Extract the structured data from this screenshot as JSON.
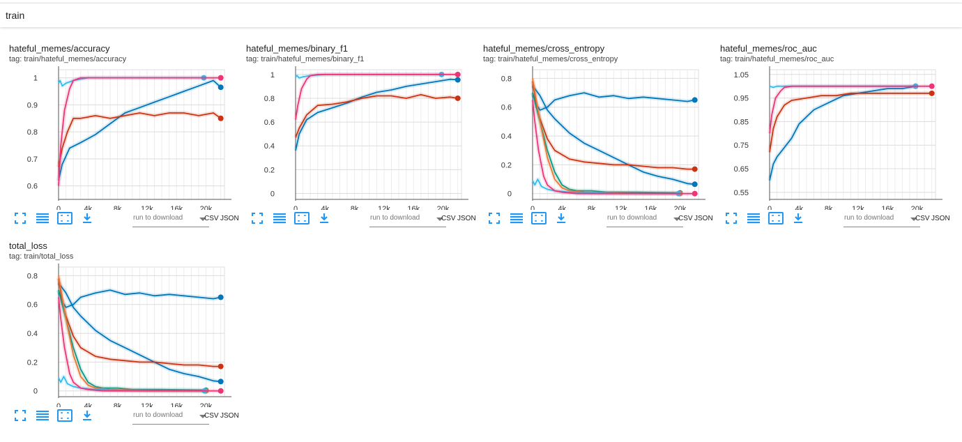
{
  "section": {
    "title": "train"
  },
  "toolbar": {
    "run_placeholder": "run to download",
    "csv_label": "CSV",
    "json_label": "JSON"
  },
  "icons": [
    "fullscreen-icon",
    "log-scale-icon",
    "fit-domain-icon",
    "download-icon"
  ],
  "colors": {
    "accent": "#2196f3",
    "dark_blue": "#0077bb",
    "light_blue": "#33bbee",
    "red": "#cc3311",
    "magenta": "#ee3377",
    "teal": "#009988",
    "orange": "#ee7733"
  },
  "chart_data": [
    {
      "type": "line",
      "title": "hateful_memes/accuracy",
      "tag": "tag: train/hateful_memes/accuracy",
      "xlim": [
        0,
        22500
      ],
      "ylim": [
        0.55,
        1.03
      ],
      "xticks": [
        0,
        4000,
        8000,
        12000,
        16000,
        20000
      ],
      "xtick_labels": [
        "0",
        "4k",
        "8k",
        "12k",
        "16k",
        "20k"
      ],
      "yticks": [
        0.6,
        0.7,
        0.8,
        0.9,
        1
      ],
      "ytick_labels": [
        "0.6",
        "0.7",
        "0.8",
        "0.9",
        "1"
      ],
      "grid": true,
      "series": [
        {
          "color": "#0077bb",
          "x": [
            0,
            500,
            1500,
            3000,
            5000,
            7000,
            9000,
            11000,
            13000,
            15000,
            17000,
            19000,
            21000,
            22000
          ],
          "y": [
            0.62,
            0.68,
            0.74,
            0.76,
            0.79,
            0.83,
            0.87,
            0.89,
            0.91,
            0.93,
            0.95,
            0.97,
            0.99,
            0.965
          ]
        },
        {
          "color": "#cc3311",
          "x": [
            0,
            500,
            1200,
            2000,
            3000,
            5000,
            7000,
            9000,
            11000,
            13000,
            15000,
            17000,
            19000,
            21000,
            22000
          ],
          "y": [
            0.67,
            0.74,
            0.8,
            0.85,
            0.85,
            0.86,
            0.85,
            0.86,
            0.87,
            0.86,
            0.87,
            0.87,
            0.86,
            0.87,
            0.85
          ]
        },
        {
          "color": "#33bbee",
          "x": [
            0,
            200,
            500,
            1000,
            2000,
            4000,
            8000,
            12000,
            16000,
            19700
          ],
          "y": [
            0.98,
            0.99,
            0.97,
            0.98,
            0.99,
            1.0,
            1.0,
            1.0,
            1.0,
            1.0
          ]
        },
        {
          "color": "#ee3377",
          "x": [
            0,
            300,
            800,
            1500,
            2000,
            3000,
            6000,
            12000,
            18000,
            22000
          ],
          "y": [
            0.6,
            0.75,
            0.88,
            0.96,
            0.99,
            1.0,
            1.0,
            1.0,
            1.0,
            1.0
          ]
        }
      ]
    },
    {
      "type": "line",
      "title": "hateful_memes/binary_f1",
      "tag": "tag: train/hateful_memes/binary_f1",
      "xlim": [
        0,
        22500
      ],
      "ylim": [
        -0.05,
        1.04
      ],
      "xticks": [
        0,
        4000,
        8000,
        12000,
        16000,
        20000
      ],
      "xtick_labels": [
        "0",
        "4k",
        "8k",
        "12k",
        "16k",
        "20k"
      ],
      "yticks": [
        0,
        0.2,
        0.4,
        0.6,
        0.8,
        1
      ],
      "ytick_labels": [
        "0",
        "0.2",
        "0.4",
        "0.6",
        "0.8",
        "1"
      ],
      "grid": true,
      "series": [
        {
          "color": "#0077bb",
          "x": [
            0,
            500,
            1500,
            3000,
            5000,
            7000,
            9000,
            11000,
            13000,
            15000,
            17000,
            19000,
            21000,
            22000
          ],
          "y": [
            0.36,
            0.5,
            0.62,
            0.68,
            0.72,
            0.76,
            0.81,
            0.85,
            0.87,
            0.9,
            0.92,
            0.94,
            0.96,
            0.955
          ]
        },
        {
          "color": "#cc3311",
          "x": [
            0,
            500,
            1500,
            3000,
            5000,
            7000,
            9000,
            11000,
            13000,
            15000,
            17000,
            19000,
            21000,
            22000
          ],
          "y": [
            0.47,
            0.55,
            0.66,
            0.74,
            0.75,
            0.77,
            0.8,
            0.82,
            0.82,
            0.8,
            0.83,
            0.8,
            0.81,
            0.8
          ]
        },
        {
          "color": "#33bbee",
          "x": [
            0,
            200,
            500,
            1000,
            2000,
            4000,
            8000,
            12000,
            16000,
            19800
          ],
          "y": [
            0.98,
            0.99,
            0.97,
            0.98,
            0.99,
            1.0,
            1.0,
            1.0,
            1.0,
            1.0
          ]
        },
        {
          "color": "#ee3377",
          "x": [
            0,
            300,
            800,
            1500,
            2000,
            3000,
            6000,
            12000,
            18000,
            22000
          ],
          "y": [
            0.62,
            0.74,
            0.88,
            0.96,
            0.99,
            1.0,
            1.0,
            1.0,
            1.0,
            1.0
          ]
        }
      ]
    },
    {
      "type": "line",
      "title": "hateful_memes/cross_entropy",
      "tag": "tag: train/hateful_memes/cross_entropy",
      "xlim": [
        0,
        22500
      ],
      "ylim": [
        -0.04,
        0.86
      ],
      "xticks": [
        0,
        4000,
        8000,
        12000,
        16000,
        20000
      ],
      "xtick_labels": [
        "0",
        "4k",
        "8k",
        "12k",
        "16k",
        "20k"
      ],
      "yticks": [
        0,
        0.2,
        0.4,
        0.6,
        0.8
      ],
      "ytick_labels": [
        "0",
        "0.2",
        "0.4",
        "0.6",
        "0.8"
      ],
      "grid": true,
      "series": [
        {
          "color": "#0077bb",
          "x": [
            0,
            500,
            1000,
            2000,
            3000,
            5000,
            7000,
            9000,
            11000,
            13000,
            15000,
            17000,
            19000,
            21000,
            22000
          ],
          "y": [
            0.7,
            0.62,
            0.58,
            0.6,
            0.65,
            0.68,
            0.7,
            0.67,
            0.68,
            0.66,
            0.67,
            0.66,
            0.65,
            0.64,
            0.65
          ]
        },
        {
          "color": "#0077bb",
          "x": [
            0,
            1000,
            2000,
            3000,
            5000,
            7000,
            9000,
            11000,
            13000,
            15000,
            17000,
            19000,
            21000,
            22000
          ],
          "y": [
            0.75,
            0.68,
            0.58,
            0.52,
            0.42,
            0.35,
            0.3,
            0.25,
            0.2,
            0.15,
            0.12,
            0.1,
            0.07,
            0.065
          ]
        },
        {
          "color": "#cc3311",
          "x": [
            0,
            500,
            1000,
            2000,
            3000,
            5000,
            7000,
            9000,
            11000,
            13000,
            15000,
            17000,
            19000,
            21000,
            22000
          ],
          "y": [
            0.78,
            0.62,
            0.52,
            0.38,
            0.3,
            0.24,
            0.22,
            0.21,
            0.2,
            0.2,
            0.19,
            0.18,
            0.18,
            0.17,
            0.17
          ]
        },
        {
          "color": "#009988",
          "x": [
            0,
            500,
            1000,
            2000,
            3000,
            4000,
            5000,
            6000,
            8000,
            10000,
            14000,
            20000
          ],
          "y": [
            0.7,
            0.6,
            0.5,
            0.3,
            0.15,
            0.06,
            0.03,
            0.02,
            0.02,
            0.01,
            0.01,
            0.005
          ]
        },
        {
          "color": "#ee7733",
          "x": [
            0,
            500,
            1000,
            2000,
            3000,
            4000,
            5000,
            7000,
            10000,
            15000,
            20000
          ],
          "y": [
            0.8,
            0.65,
            0.5,
            0.25,
            0.1,
            0.04,
            0.02,
            0.01,
            0.005,
            0.0,
            0.0
          ]
        },
        {
          "color": "#33bbee",
          "x": [
            0,
            300,
            700,
            1200,
            2000,
            3000,
            5000,
            8000,
            12000,
            16000,
            19800
          ],
          "y": [
            0.09,
            0.06,
            0.1,
            0.05,
            0.03,
            0.02,
            0.01,
            0.005,
            0.0,
            0.0,
            0.0
          ]
        },
        {
          "color": "#ee3377",
          "x": [
            0,
            300,
            800,
            1500,
            2000,
            3000,
            4000,
            6000,
            12000,
            18000,
            22000
          ],
          "y": [
            0.65,
            0.5,
            0.3,
            0.12,
            0.06,
            0.02,
            0.01,
            0.0,
            0.0,
            0.0,
            0.0
          ]
        }
      ]
    },
    {
      "type": "line",
      "title": "hateful_memes/roc_auc",
      "tag": "tag: train/hateful_memes/roc_auc",
      "xlim": [
        0,
        22500
      ],
      "ylim": [
        0.52,
        1.07
      ],
      "xticks": [
        0,
        4000,
        8000,
        12000,
        16000,
        20000
      ],
      "xtick_labels": [
        "0",
        "4k",
        "8k",
        "12k",
        "16k",
        "20k"
      ],
      "yticks": [
        0.55,
        0.65,
        0.75,
        0.85,
        0.95,
        1.05
      ],
      "ytick_labels": [
        "0.55",
        "0.65",
        "0.75",
        "0.85",
        "0.95",
        "1.05"
      ],
      "grid": true,
      "series": [
        {
          "color": "#0077bb",
          "x": [
            0,
            500,
            1000,
            2000,
            3000,
            4000,
            6000,
            8000,
            10000,
            12000,
            14000,
            16000,
            18000,
            19800
          ],
          "y": [
            0.6,
            0.67,
            0.7,
            0.74,
            0.78,
            0.84,
            0.9,
            0.93,
            0.96,
            0.97,
            0.98,
            0.99,
            0.99,
            1.0
          ]
        },
        {
          "color": "#cc3311",
          "x": [
            0,
            500,
            1000,
            2000,
            3000,
            5000,
            7000,
            9000,
            11000,
            13000,
            15000,
            17000,
            19000,
            21000,
            22000
          ],
          "y": [
            0.72,
            0.82,
            0.87,
            0.92,
            0.94,
            0.95,
            0.96,
            0.96,
            0.97,
            0.97,
            0.97,
            0.97,
            0.97,
            0.97,
            0.97
          ]
        },
        {
          "color": "#33bbee",
          "x": [
            0,
            500,
            1000,
            2000,
            4000,
            8000,
            12000,
            16000,
            19800
          ],
          "y": [
            1.0,
            0.995,
            1.0,
            1.0,
            1.0,
            1.0,
            1.0,
            1.0,
            1.0
          ]
        },
        {
          "color": "#ee3377",
          "x": [
            0,
            300,
            800,
            1500,
            2000,
            3000,
            6000,
            12000,
            18000,
            22000
          ],
          "y": [
            0.8,
            0.88,
            0.95,
            0.98,
            0.995,
            1.0,
            1.0,
            1.0,
            1.0,
            1.0
          ]
        }
      ]
    },
    {
      "type": "line",
      "title": "total_loss",
      "tag": "tag: train/total_loss",
      "xlim": [
        0,
        22500
      ],
      "ylim": [
        -0.04,
        0.86
      ],
      "xticks": [
        0,
        4000,
        8000,
        12000,
        16000,
        20000
      ],
      "xtick_labels": [
        "0",
        "4k",
        "8k",
        "12k",
        "16k",
        "20k"
      ],
      "yticks": [
        0,
        0.2,
        0.4,
        0.6,
        0.8
      ],
      "ytick_labels": [
        "0",
        "0.2",
        "0.4",
        "0.6",
        "0.8"
      ],
      "grid": true,
      "series": [
        {
          "color": "#0077bb",
          "x": [
            0,
            500,
            1000,
            2000,
            3000,
            5000,
            7000,
            9000,
            11000,
            13000,
            15000,
            17000,
            19000,
            21000,
            22000
          ],
          "y": [
            0.7,
            0.62,
            0.58,
            0.6,
            0.65,
            0.68,
            0.7,
            0.67,
            0.68,
            0.66,
            0.67,
            0.66,
            0.65,
            0.64,
            0.65
          ]
        },
        {
          "color": "#0077bb",
          "x": [
            0,
            1000,
            2000,
            3000,
            5000,
            7000,
            9000,
            11000,
            13000,
            15000,
            17000,
            19000,
            21000,
            22000
          ],
          "y": [
            0.75,
            0.68,
            0.58,
            0.52,
            0.42,
            0.35,
            0.3,
            0.25,
            0.2,
            0.15,
            0.12,
            0.1,
            0.07,
            0.065
          ]
        },
        {
          "color": "#cc3311",
          "x": [
            0,
            500,
            1000,
            2000,
            3000,
            5000,
            7000,
            9000,
            11000,
            13000,
            15000,
            17000,
            19000,
            21000,
            22000
          ],
          "y": [
            0.78,
            0.62,
            0.52,
            0.38,
            0.3,
            0.24,
            0.22,
            0.21,
            0.2,
            0.2,
            0.19,
            0.18,
            0.18,
            0.17,
            0.17
          ]
        },
        {
          "color": "#009988",
          "x": [
            0,
            500,
            1000,
            2000,
            3000,
            4000,
            5000,
            6000,
            8000,
            10000,
            14000,
            20000
          ],
          "y": [
            0.7,
            0.6,
            0.5,
            0.3,
            0.15,
            0.06,
            0.03,
            0.02,
            0.02,
            0.01,
            0.01,
            0.005
          ]
        },
        {
          "color": "#ee7733",
          "x": [
            0,
            500,
            1000,
            2000,
            3000,
            4000,
            5000,
            7000,
            10000,
            15000,
            20000
          ],
          "y": [
            0.8,
            0.65,
            0.5,
            0.25,
            0.1,
            0.04,
            0.02,
            0.01,
            0.005,
            0.0,
            0.0
          ]
        },
        {
          "color": "#33bbee",
          "x": [
            0,
            300,
            700,
            1200,
            2000,
            3000,
            5000,
            8000,
            12000,
            16000,
            19800
          ],
          "y": [
            0.09,
            0.06,
            0.1,
            0.05,
            0.03,
            0.02,
            0.01,
            0.005,
            0.0,
            0.0,
            0.0
          ]
        },
        {
          "color": "#ee3377",
          "x": [
            0,
            300,
            800,
            1500,
            2000,
            3000,
            4000,
            6000,
            12000,
            18000,
            22000
          ],
          "y": [
            0.65,
            0.5,
            0.3,
            0.12,
            0.06,
            0.02,
            0.01,
            0.0,
            0.0,
            0.0,
            0.0
          ]
        }
      ]
    }
  ]
}
